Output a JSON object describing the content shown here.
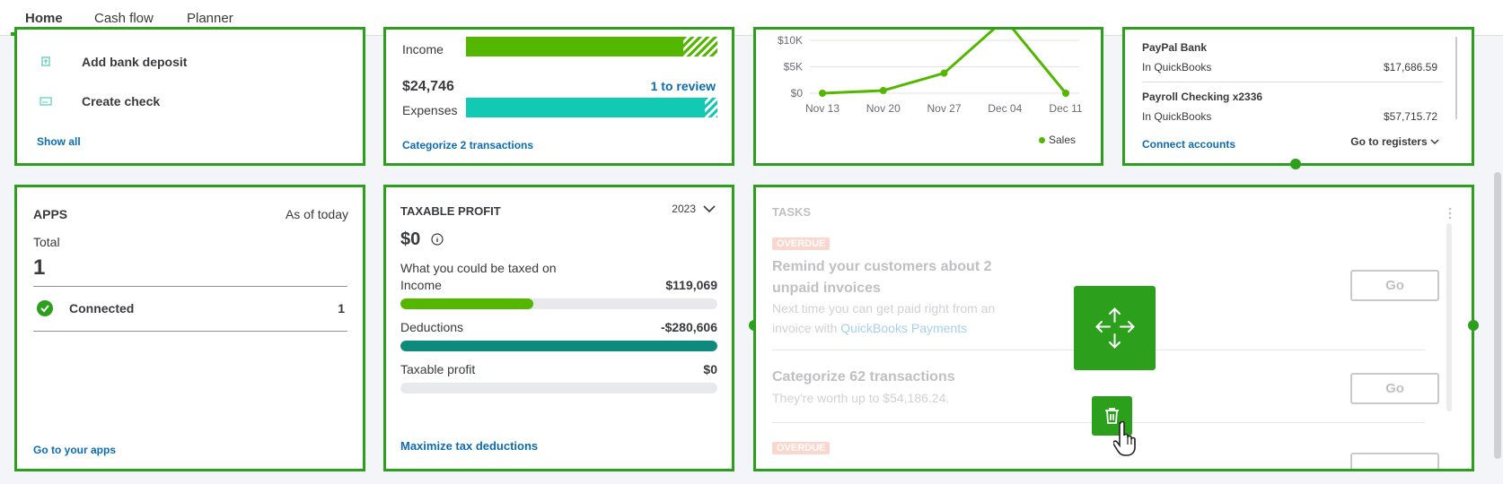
{
  "nav": {
    "tabs": [
      "Home",
      "Cash flow",
      "Planner"
    ]
  },
  "shortcuts": {
    "items": [
      {
        "label": "Add bank deposit",
        "icon": "bank-deposit-icon"
      },
      {
        "label": "Create check",
        "icon": "check-icon"
      }
    ],
    "show_all": "Show all"
  },
  "pl": {
    "income_label": "Income",
    "expenses_amount": "$24,746",
    "review": "1 to review",
    "expenses_label": "Expenses",
    "income_fraction": 0.83,
    "expenses_fraction": 0.95,
    "categorize": "Categorize 2 transactions"
  },
  "sales": {
    "chart_data": {
      "type": "line",
      "categories": [
        "Nov 13",
        "Nov 20",
        "Nov 27",
        "Dec 04",
        "Dec 11"
      ],
      "series": [
        {
          "name": "Sales",
          "values": [
            0,
            500,
            3800,
            14000,
            0
          ]
        }
      ],
      "yticks": [
        "$10K",
        "$5K",
        "$0"
      ],
      "ylim": [
        0,
        10000
      ],
      "legend": "bottom-right",
      "color": "#53b700"
    }
  },
  "bank": {
    "accounts": [
      {
        "name": "PayPal Bank",
        "source": "In QuickBooks",
        "amount": "$17,686.59"
      },
      {
        "name": "Payroll Checking x2336",
        "source": "In QuickBooks",
        "amount": "$57,715.72"
      }
    ],
    "connect": "Connect accounts",
    "registers": "Go to registers"
  },
  "apps": {
    "title": "APPS",
    "as_of": "As of today",
    "total_label": "Total",
    "total_value": "1",
    "connected_label": "Connected",
    "connected_value": "1",
    "link": "Go to your apps"
  },
  "tax": {
    "title": "TAXABLE PROFIT",
    "year": "2023",
    "amount": "$0",
    "subtitle": "What you could be taxed on",
    "rows": [
      {
        "label": "Income",
        "value": "$119,069",
        "fraction": 0.42,
        "color": "#53b700"
      },
      {
        "label": "Deductions",
        "value": "-$280,606",
        "fraction": 1.0,
        "color": "#0e8a7d"
      },
      {
        "label": "Taxable profit",
        "value": "$0",
        "fraction": 0,
        "color": "#53b700"
      }
    ],
    "link": "Maximize tax deductions"
  },
  "tasks": {
    "title": "TASKS",
    "badge": "OVERDUE",
    "items": [
      {
        "title": "Remind your customers about 2 unpaid invoices",
        "desc_pre": "Next time you can get paid right from an invoice with ",
        "desc_link": "QuickBooks Payments",
        "go": "Go"
      },
      {
        "title": "Categorize 62 transactions",
        "desc": "They're worth up to $54,186.24.",
        "go": "Go"
      }
    ],
    "badge2": "OVERDUE"
  }
}
